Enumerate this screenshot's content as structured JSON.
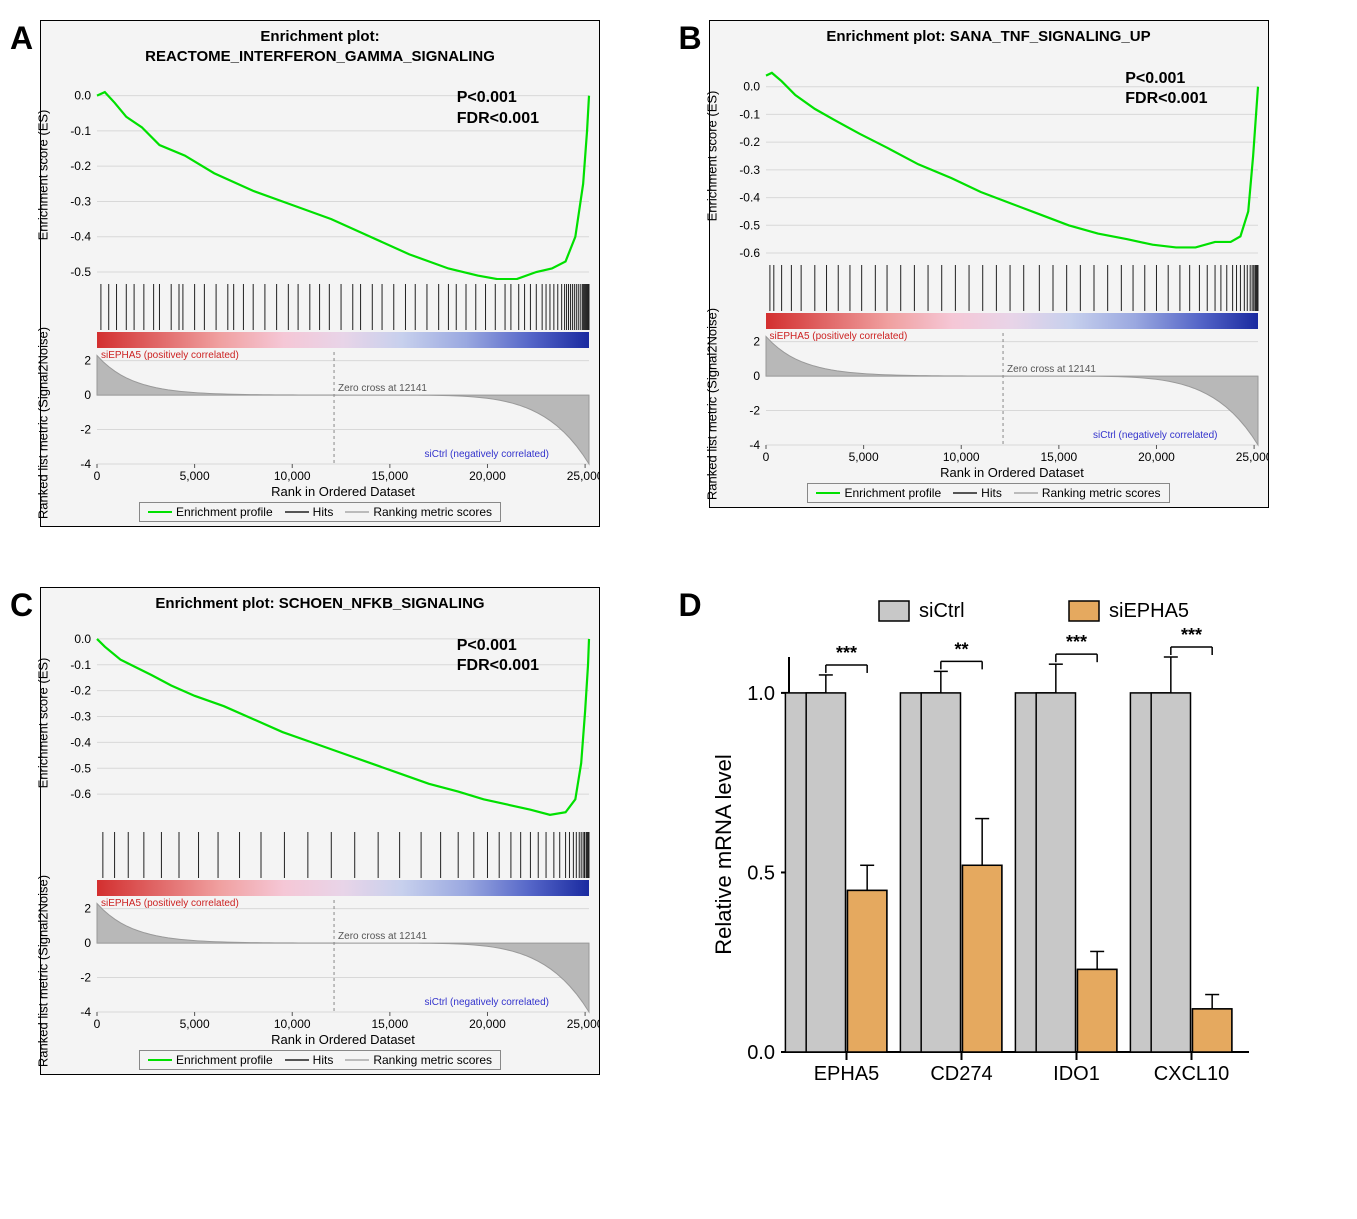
{
  "panels": {
    "A": {
      "letter": "A",
      "title_line1": "Enrichment plot:",
      "title_line2": "REACTOME_INTERFERON_GAMMA_SIGNALING",
      "p": "P<0.001",
      "fdr": "FDR<0.001",
      "es_ylabel": "Enrichment score (ES)",
      "es_ymin": -0.5,
      "es_ymax": 0.05,
      "es_ticks": [
        0.0,
        -0.1,
        -0.2,
        -0.3,
        -0.4,
        -0.5
      ],
      "es_line_color": "#00e000",
      "es_curve": [
        [
          0,
          0.0
        ],
        [
          400,
          0.01
        ],
        [
          900,
          -0.02
        ],
        [
          1500,
          -0.06
        ],
        [
          2300,
          -0.09
        ],
        [
          3200,
          -0.14
        ],
        [
          4500,
          -0.17
        ],
        [
          6000,
          -0.22
        ],
        [
          8000,
          -0.27
        ],
        [
          10000,
          -0.31
        ],
        [
          12000,
          -0.35
        ],
        [
          14000,
          -0.4
        ],
        [
          16000,
          -0.45
        ],
        [
          18000,
          -0.49
        ],
        [
          19500,
          -0.51
        ],
        [
          20500,
          -0.52
        ],
        [
          21500,
          -0.52
        ],
        [
          22500,
          -0.5
        ],
        [
          23300,
          -0.49
        ],
        [
          24000,
          -0.47
        ],
        [
          24500,
          -0.4
        ],
        [
          24900,
          -0.25
        ],
        [
          25100,
          -0.1
        ],
        [
          25200,
          0.0
        ]
      ],
      "hits": [
        200,
        600,
        1000,
        1500,
        1900,
        2400,
        2900,
        3200,
        3800,
        4200,
        4400,
        5000,
        5500,
        6100,
        6700,
        7000,
        7500,
        8000,
        8600,
        9200,
        9800,
        10300,
        10900,
        11400,
        11900,
        12500,
        13100,
        13500,
        14100,
        14600,
        15200,
        15800,
        16300,
        16900,
        17500,
        18000,
        18400,
        18900,
        19400,
        19900,
        20400,
        20900,
        21200,
        21600,
        21900,
        22200,
        22500,
        22800,
        23000,
        23200,
        23400,
        23600,
        23800,
        23950,
        24050,
        24150,
        24250,
        24350,
        24450,
        24550,
        24650,
        24750,
        24850,
        24900,
        24950,
        25000,
        25050,
        25100,
        25150,
        25180,
        25200
      ],
      "xmin": 0,
      "xmax": 25200,
      "xticks": [
        0,
        5000,
        10000,
        15000,
        20000,
        25000
      ],
      "xtick_labels": [
        "0",
        "5,000",
        "10,000",
        "15,000",
        "20,000",
        "25,000"
      ],
      "pos_label": "siEPHA5 (positively correlated)",
      "neg_label": "siCtrl (negatively correlated)",
      "zero_cross": "Zero cross at 12141",
      "ranked_ylabel": "Ranked list metric (Signal2Noise)",
      "ranked_ymin": -4,
      "ranked_ymax": 2.5,
      "ranked_ticks": [
        -4,
        -2,
        0,
        2
      ],
      "legend": {
        "profile": "Enrichment profile",
        "profile_color": "#00e000",
        "hits": "Hits",
        "hits_color": "#555",
        "scores": "Ranking metric scores",
        "scores_color": "#bbb"
      },
      "xlabel": "Rank in Ordered Dataset"
    },
    "B": {
      "letter": "B",
      "title_line1": "Enrichment plot: SANA_TNF_SIGNALING_UP",
      "title_line2": "",
      "p": "P<0.001",
      "fdr": "FDR<0.001",
      "es_ylabel": "Enrichment score (ES)",
      "es_ymin": -0.6,
      "es_ymax": 0.1,
      "es_ticks": [
        0.0,
        -0.1,
        -0.2,
        -0.3,
        -0.4,
        -0.5,
        -0.6
      ],
      "es_line_color": "#00e000",
      "es_curve": [
        [
          0,
          0.04
        ],
        [
          300,
          0.05
        ],
        [
          800,
          0.02
        ],
        [
          1500,
          -0.03
        ],
        [
          2500,
          -0.08
        ],
        [
          3500,
          -0.12
        ],
        [
          4800,
          -0.17
        ],
        [
          6200,
          -0.22
        ],
        [
          7800,
          -0.28
        ],
        [
          9500,
          -0.33
        ],
        [
          11000,
          -0.38
        ],
        [
          12500,
          -0.42
        ],
        [
          14000,
          -0.46
        ],
        [
          15500,
          -0.5
        ],
        [
          17000,
          -0.53
        ],
        [
          18500,
          -0.55
        ],
        [
          19800,
          -0.57
        ],
        [
          21000,
          -0.58
        ],
        [
          22000,
          -0.58
        ],
        [
          23000,
          -0.56
        ],
        [
          23800,
          -0.56
        ],
        [
          24300,
          -0.54
        ],
        [
          24700,
          -0.45
        ],
        [
          24950,
          -0.25
        ],
        [
          25100,
          -0.1
        ],
        [
          25200,
          0.0
        ]
      ],
      "hits": [
        200,
        400,
        800,
        1300,
        1800,
        2500,
        3100,
        3700,
        4300,
        4900,
        5600,
        6200,
        6900,
        7600,
        8300,
        9000,
        9700,
        10400,
        11100,
        11800,
        12500,
        13200,
        14000,
        14700,
        15400,
        16100,
        16800,
        17500,
        18200,
        18800,
        19400,
        20000,
        20600,
        21200,
        21700,
        22200,
        22600,
        23000,
        23300,
        23600,
        23900,
        24100,
        24300,
        24500,
        24650,
        24800,
        24900,
        24980,
        25050,
        25100,
        25150,
        25200
      ],
      "xmin": 0,
      "xmax": 25200,
      "xticks": [
        0,
        5000,
        10000,
        15000,
        20000,
        25000
      ],
      "xtick_labels": [
        "0",
        "5,000",
        "10,000",
        "15,000",
        "20,000",
        "25,000"
      ],
      "pos_label": "siEPHA5 (positively correlated)",
      "neg_label": "siCtrl (negatively correlated)",
      "zero_cross": "Zero cross at 12141",
      "ranked_ylabel": "Ranked list metric (Signal2Noise)",
      "ranked_ymin": -4,
      "ranked_ymax": 2.5,
      "ranked_ticks": [
        -4,
        -2,
        0,
        2
      ],
      "legend": {
        "profile": "Enrichment profile",
        "profile_color": "#00e000",
        "hits": "Hits",
        "hits_color": "#555",
        "scores": "Ranking metric scores",
        "scores_color": "#bbb"
      },
      "xlabel": "Rank in Ordered Dataset"
    },
    "C": {
      "letter": "C",
      "title_line1": "Enrichment plot: SCHOEN_NFKB_SIGNALING",
      "title_line2": "",
      "p": "P<0.001",
      "fdr": "FDR<0.001",
      "es_ylabel": "Enrichment score (ES)",
      "es_ymin": -0.7,
      "es_ymax": 0.05,
      "es_ticks": [
        0.0,
        -0.1,
        -0.2,
        -0.3,
        -0.4,
        -0.5,
        -0.6
      ],
      "es_line_color": "#00e000",
      "es_curve": [
        [
          0,
          0.0
        ],
        [
          400,
          -0.03
        ],
        [
          1200,
          -0.08
        ],
        [
          2000,
          -0.11
        ],
        [
          2800,
          -0.14
        ],
        [
          3800,
          -0.18
        ],
        [
          5000,
          -0.22
        ],
        [
          6500,
          -0.26
        ],
        [
          8000,
          -0.31
        ],
        [
          9500,
          -0.36
        ],
        [
          11000,
          -0.4
        ],
        [
          12500,
          -0.44
        ],
        [
          14000,
          -0.48
        ],
        [
          15500,
          -0.52
        ],
        [
          17000,
          -0.56
        ],
        [
          18500,
          -0.59
        ],
        [
          19800,
          -0.62
        ],
        [
          21000,
          -0.64
        ],
        [
          22200,
          -0.66
        ],
        [
          23200,
          -0.68
        ],
        [
          24000,
          -0.67
        ],
        [
          24500,
          -0.62
        ],
        [
          24800,
          -0.48
        ],
        [
          25000,
          -0.28
        ],
        [
          25150,
          -0.1
        ],
        [
          25200,
          0.0
        ]
      ],
      "hits": [
        300,
        900,
        1600,
        2400,
        3300,
        4200,
        5200,
        6200,
        7300,
        8400,
        9600,
        10800,
        12000,
        13200,
        14400,
        15500,
        16600,
        17600,
        18500,
        19300,
        20000,
        20600,
        21200,
        21700,
        22200,
        22600,
        23000,
        23400,
        23700,
        24000,
        24200,
        24400,
        24550,
        24700,
        24800,
        24900,
        24970,
        25050,
        25100,
        25150,
        25200
      ],
      "xmin": 0,
      "xmax": 25200,
      "xticks": [
        0,
        5000,
        10000,
        15000,
        20000,
        25000
      ],
      "xtick_labels": [
        "0",
        "5,000",
        "10,000",
        "15,000",
        "20,000",
        "25,000"
      ],
      "pos_label": "siEPHA5 (positively correlated)",
      "neg_label": "siCtrl (negatively correlated)",
      "zero_cross": "Zero cross at 12141",
      "ranked_ylabel": "Ranked list metric (Signal2Noise)",
      "ranked_ymin": -4,
      "ranked_ymax": 2.5,
      "ranked_ticks": [
        -4,
        -2,
        0,
        2
      ],
      "legend": {
        "profile": "Enrichment profile",
        "profile_color": "#00e000",
        "hits": "Hits",
        "hits_color": "#555",
        "scores": "Ranking metric scores",
        "scores_color": "#bbb"
      },
      "xlabel": "Rank in Ordered Dataset"
    },
    "D": {
      "letter": "D",
      "type": "bar",
      "ylabel": "Relative mRNA level",
      "ymin": 0.0,
      "ymax": 1.1,
      "yticks": [
        0.0,
        0.5,
        1.0
      ],
      "categories": [
        "EPHA5",
        "CD274",
        "IDO1",
        "CXCL10"
      ],
      "groups": [
        {
          "name": "siCtrl",
          "color": "#c8c8c8",
          "values": [
            1.0,
            1.0,
            1.0,
            1.0
          ],
          "err": [
            0.05,
            0.06,
            0.08,
            0.1
          ]
        },
        {
          "name": "siEPHA5",
          "color": "#e5a95f",
          "values": [
            0.45,
            0.52,
            0.23,
            0.12
          ],
          "err": [
            0.07,
            0.13,
            0.05,
            0.04
          ]
        }
      ],
      "sig": [
        "***",
        "**",
        "***",
        "***"
      ],
      "bar_width": 0.36,
      "axis_color": "#000",
      "font_size_axis": 20,
      "font_size_legend": 20
    }
  },
  "gradient_colors": [
    "#d32f2f",
    "#e06666",
    "#f0a0a0",
    "#f5c7d6",
    "#e8d4e8",
    "#c7d0ed",
    "#9aa8e0",
    "#5566c8",
    "#1a2aa0"
  ],
  "gradient_stops": [
    0,
    12,
    25,
    38,
    50,
    62,
    75,
    88,
    100
  ]
}
